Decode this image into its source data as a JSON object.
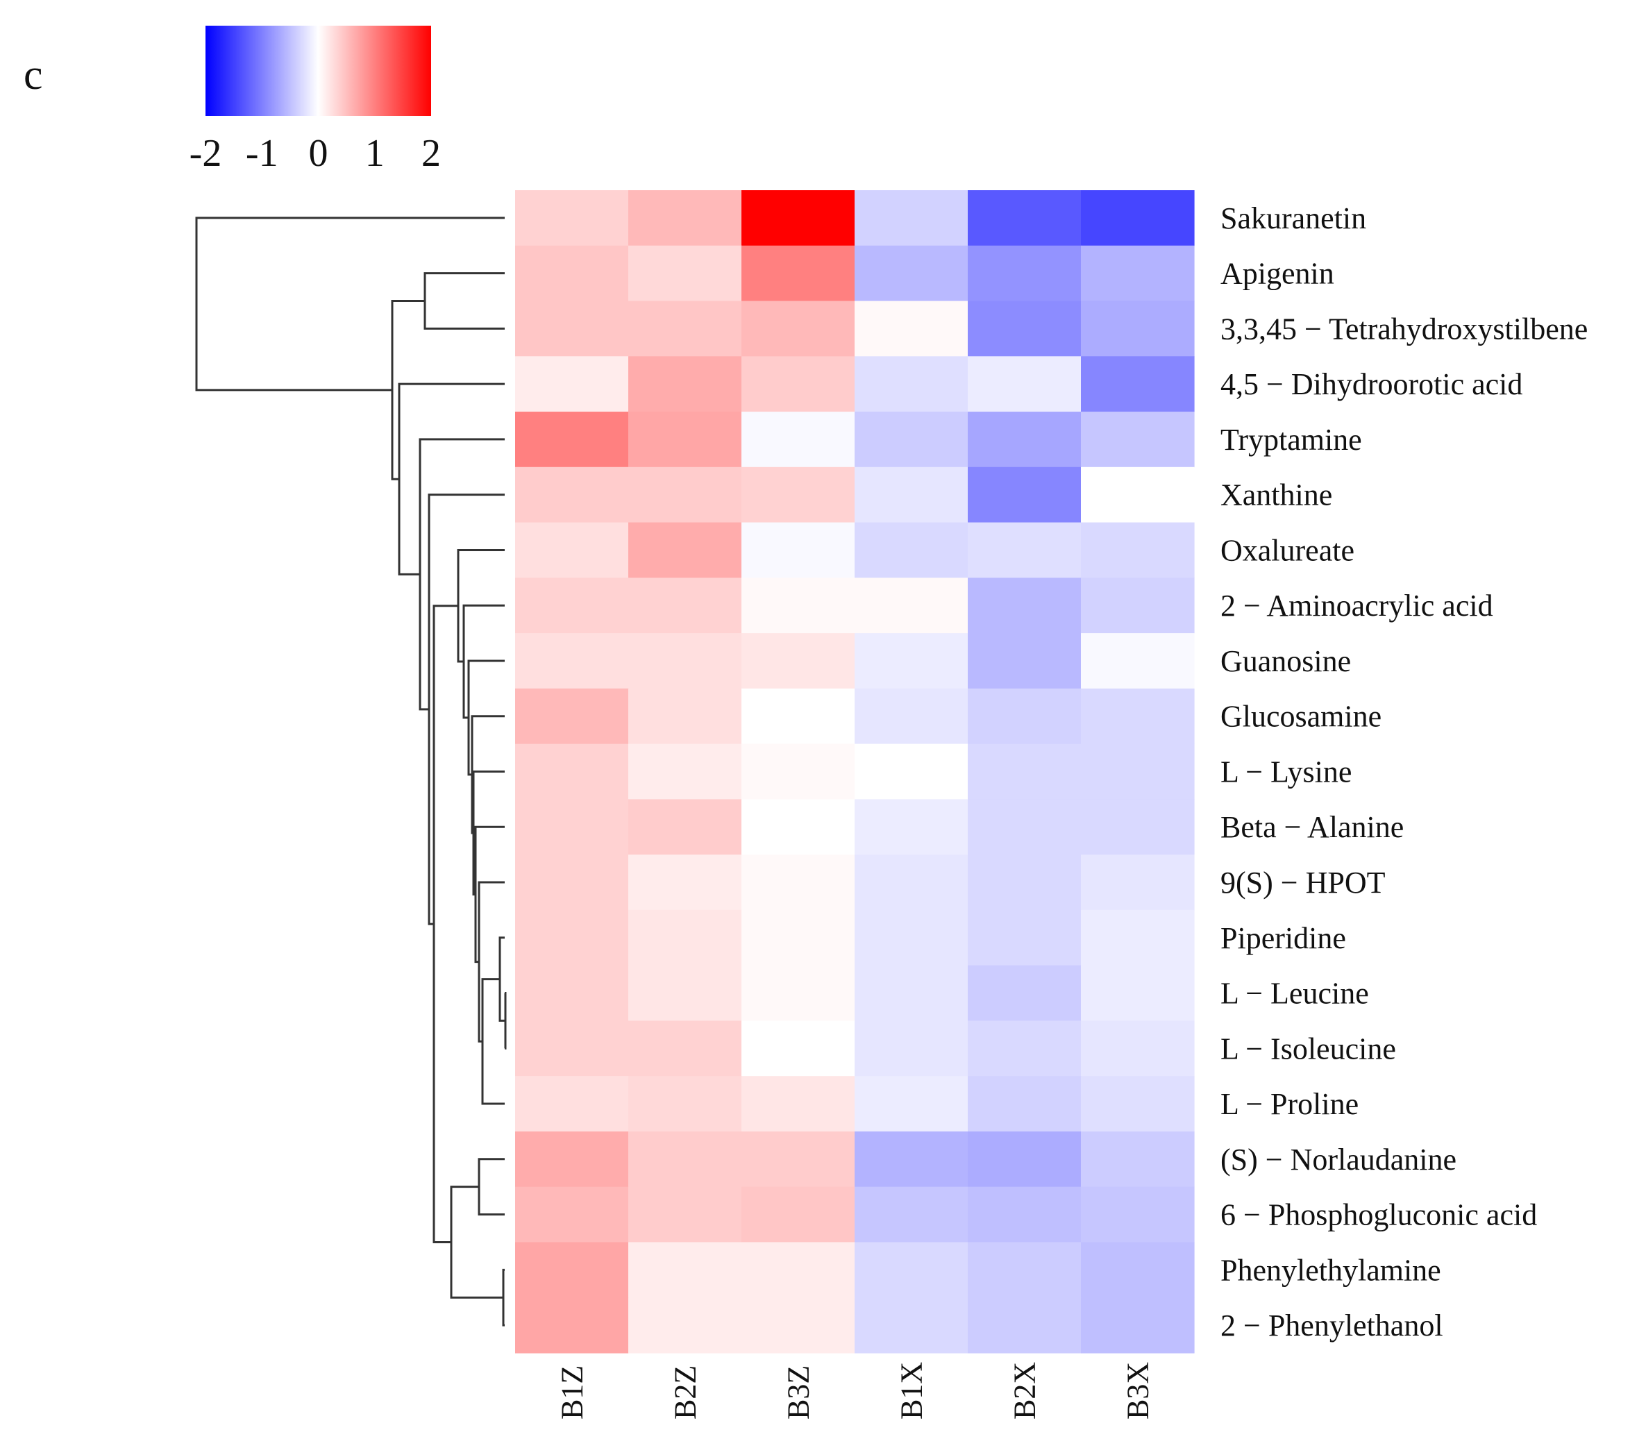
{
  "panel_label": "c",
  "chart_data": {
    "type": "heatmap",
    "title": "",
    "columns": [
      "B1Z",
      "B2Z",
      "B3Z",
      "B1X",
      "B2X",
      "B3X"
    ],
    "rows": [
      "Sakuranetin",
      "Apigenin",
      "3,3,45 − Tetrahydroxystilbene",
      "4,5 − Dihydroorotic acid",
      "Tryptamine",
      "Xanthine",
      "Oxalureate",
      "2 − Aminoacrylic acid",
      "Guanosine",
      "Glucosamine",
      "L − Lysine",
      "Beta − Alanine",
      "9(S) − HPOT",
      "Piperidine",
      "L − Leucine",
      "L − Isoleucine",
      "L − Proline",
      "(S) − Norlaudanine",
      "6 − Phosphogluconic acid",
      "Phenylethylamine",
      "2 − Phenylethanol"
    ],
    "values": [
      [
        0.35,
        0.55,
        2.0,
        -0.35,
        -1.3,
        -1.45
      ],
      [
        0.45,
        0.3,
        1.0,
        -0.55,
        -0.85,
        -0.6
      ],
      [
        0.45,
        0.45,
        0.55,
        0.05,
        -0.9,
        -0.65
      ],
      [
        0.15,
        0.65,
        0.4,
        -0.25,
        -0.15,
        -0.95
      ],
      [
        1.0,
        0.7,
        -0.05,
        -0.4,
        -0.7,
        -0.45
      ],
      [
        0.4,
        0.4,
        0.35,
        -0.2,
        -0.95,
        0.0
      ],
      [
        0.25,
        0.65,
        -0.05,
        -0.3,
        -0.25,
        -0.3
      ],
      [
        0.35,
        0.35,
        0.05,
        0.05,
        -0.55,
        -0.35
      ],
      [
        0.25,
        0.25,
        0.2,
        -0.15,
        -0.55,
        -0.05
      ],
      [
        0.55,
        0.25,
        0.0,
        -0.2,
        -0.35,
        -0.3
      ],
      [
        0.35,
        0.15,
        0.05,
        0.0,
        -0.3,
        -0.3
      ],
      [
        0.35,
        0.4,
        0.0,
        -0.15,
        -0.3,
        -0.3
      ],
      [
        0.35,
        0.15,
        0.05,
        -0.2,
        -0.3,
        -0.2
      ],
      [
        0.35,
        0.2,
        0.05,
        -0.2,
        -0.3,
        -0.15
      ],
      [
        0.35,
        0.2,
        0.05,
        -0.2,
        -0.4,
        -0.15
      ],
      [
        0.35,
        0.35,
        0.0,
        -0.2,
        -0.3,
        -0.2
      ],
      [
        0.25,
        0.3,
        0.2,
        -0.15,
        -0.35,
        -0.25
      ],
      [
        0.65,
        0.4,
        0.4,
        -0.6,
        -0.65,
        -0.4
      ],
      [
        0.55,
        0.4,
        0.45,
        -0.45,
        -0.5,
        -0.45
      ],
      [
        0.7,
        0.15,
        0.15,
        -0.3,
        -0.4,
        -0.5
      ],
      [
        0.7,
        0.15,
        0.15,
        -0.3,
        -0.4,
        -0.5
      ]
    ],
    "colorbar": {
      "range": [
        -2,
        2
      ],
      "ticks": [
        "-2",
        "-1",
        "0",
        "1",
        "2"
      ],
      "colors": [
        "#0000ff",
        "#ffffff",
        "#ff0000"
      ]
    },
    "row_dendrogram": true,
    "legend_position": "top-left"
  }
}
